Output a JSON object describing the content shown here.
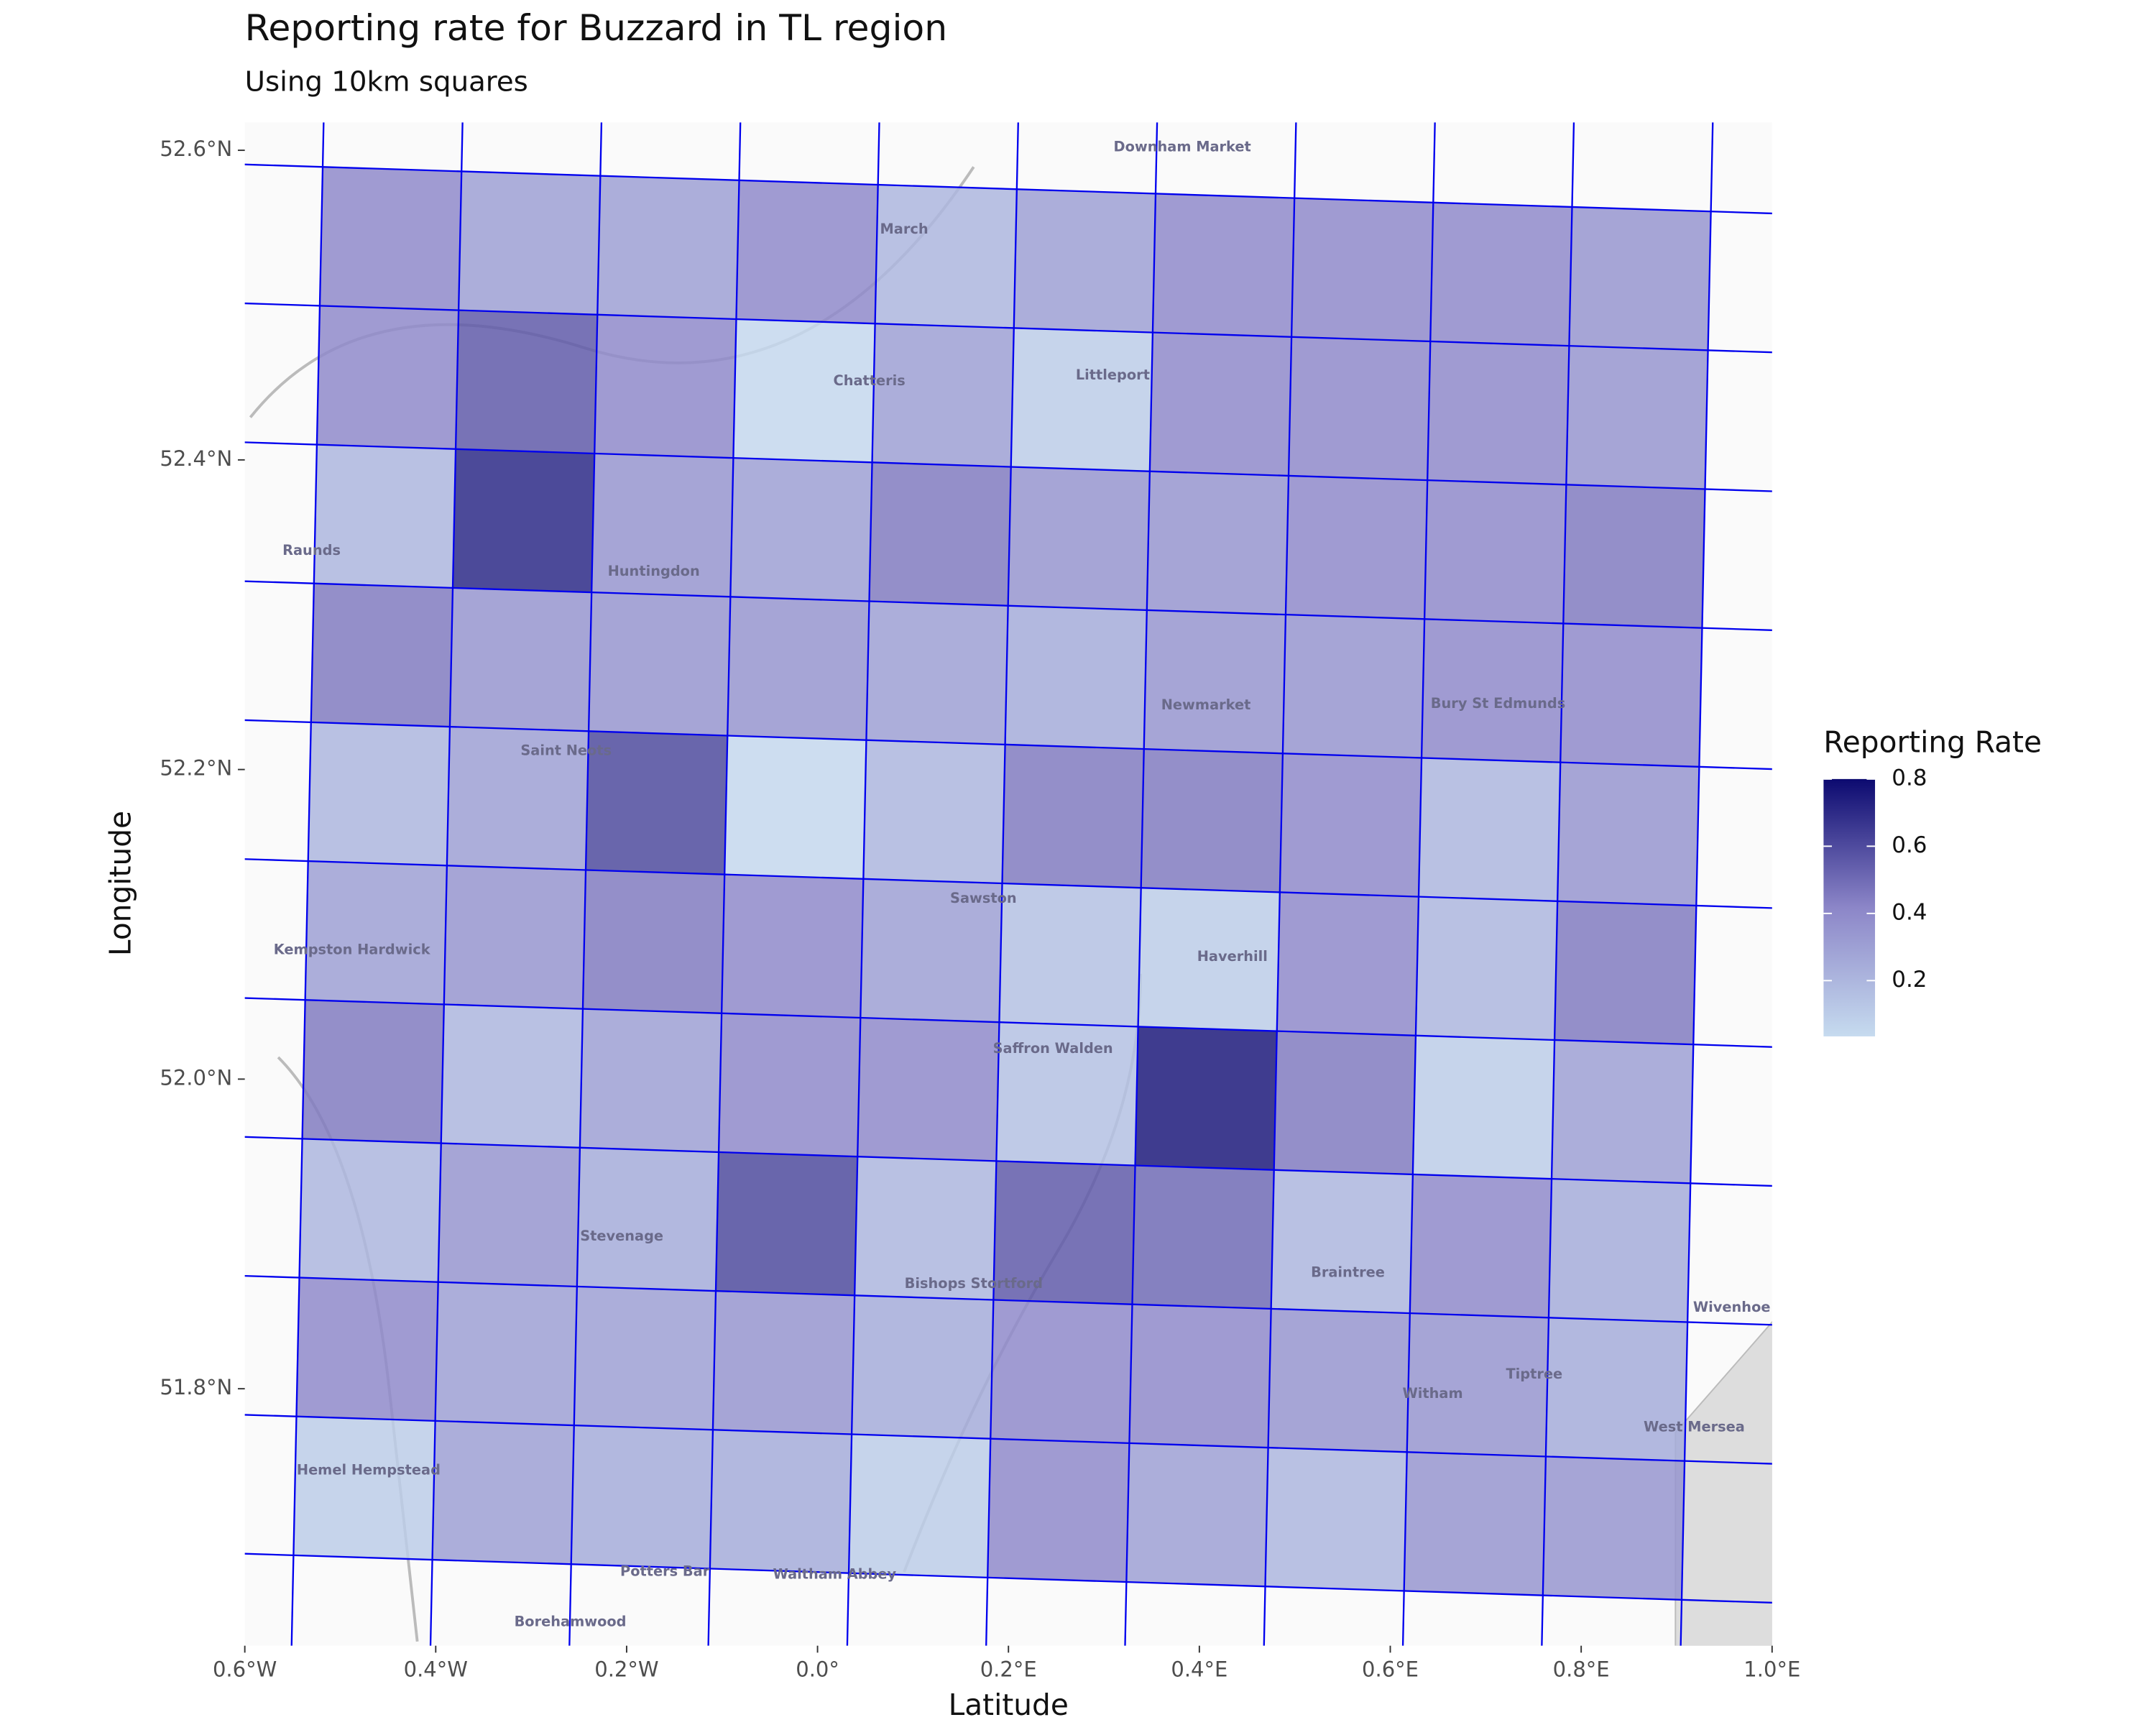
{
  "chart_data": {
    "type": "heatmap",
    "title": "Reporting rate for Buzzard in TL region",
    "subtitle": "Using 10km squares",
    "x_label": "Latitude",
    "y_label": "Longitude",
    "xlim": [
      -0.6,
      1.0
    ],
    "ylim": [
      51.634,
      52.618
    ],
    "xticks": [
      {
        "value": -0.6,
        "label": "0.6°W"
      },
      {
        "value": -0.4,
        "label": "0.4°W"
      },
      {
        "value": -0.2,
        "label": "0.2°W"
      },
      {
        "value": 0.0,
        "label": "0.0°"
      },
      {
        "value": 0.2,
        "label": "0.2°E"
      },
      {
        "value": 0.4,
        "label": "0.4°E"
      },
      {
        "value": 0.6,
        "label": "0.6°E"
      },
      {
        "value": 0.8,
        "label": "0.8°E"
      },
      {
        "value": 1.0,
        "label": "1.0°E"
      }
    ],
    "yticks": [
      {
        "value": 51.8,
        "label": "51.8°N"
      },
      {
        "value": 52.0,
        "label": "52.0°N"
      },
      {
        "value": 52.2,
        "label": "52.2°N"
      },
      {
        "value": 52.4,
        "label": "52.4°N"
      },
      {
        "value": 52.6,
        "label": "52.6°N"
      }
    ],
    "legend_title": "Reporting Rate",
    "zlim": [
      0.034,
      0.8
    ],
    "zticks": [
      0.2,
      0.4,
      0.6,
      0.8
    ],
    "colors": [
      "#c6dbef",
      "#8c86c8",
      "#0c0a70"
    ],
    "grid_color": "#0000ee",
    "values": [
      [
        0.4,
        0.3,
        0.3,
        0.4,
        0.2,
        0.3,
        0.4,
        0.4,
        0.4,
        0.35
      ],
      [
        0.4,
        0.55,
        0.4,
        0.05,
        0.3,
        0.1,
        0.4,
        0.4,
        0.4,
        0.35
      ],
      [
        0.2,
        0.7,
        0.35,
        0.3,
        0.45,
        0.35,
        0.35,
        0.4,
        0.4,
        0.45
      ],
      [
        0.45,
        0.35,
        0.35,
        0.35,
        0.3,
        0.25,
        0.35,
        0.35,
        0.4,
        0.4
      ],
      [
        0.2,
        0.3,
        0.6,
        0.05,
        0.2,
        0.45,
        0.45,
        0.4,
        0.2,
        0.35
      ],
      [
        0.3,
        0.35,
        0.45,
        0.4,
        0.3,
        0.15,
        0.1,
        0.4,
        0.2,
        0.45
      ],
      [
        0.45,
        0.2,
        0.3,
        0.4,
        0.4,
        0.15,
        0.75,
        0.45,
        0.1,
        0.3
      ],
      [
        0.2,
        0.35,
        0.25,
        0.6,
        0.2,
        0.55,
        0.5,
        0.2,
        0.4,
        0.25
      ],
      [
        0.4,
        0.3,
        0.3,
        0.35,
        0.25,
        0.4,
        0.4,
        0.35,
        0.35,
        0.25
      ],
      [
        0.1,
        0.3,
        0.25,
        0.25,
        0.1,
        0.4,
        0.3,
        0.2,
        0.35,
        0.35
      ]
    ],
    "places": [
      "Downham Market",
      "March",
      "Chatteris",
      "Littleport",
      "Huntingdon",
      "Newmarket",
      "Bury St Edmunds",
      "Saint Neots",
      "Sawston",
      "Haverhill",
      "Saffron Walden",
      "Stevenage",
      "Bishops Stortford",
      "Braintree",
      "Witham",
      "Tiptree",
      "West Mersea",
      "Wivenhoe",
      "Hemel Hempstead",
      "Potters Bar",
      "Waltham Abbey",
      "Borehamwood",
      "Raunds",
      "Kempston Hardwick"
    ]
  }
}
